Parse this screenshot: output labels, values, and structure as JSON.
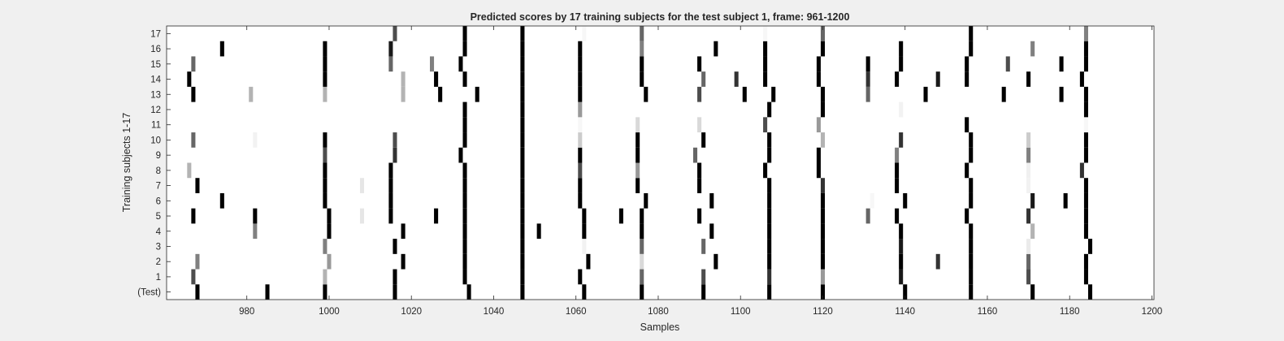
{
  "chart_data": {
    "type": "heatmap",
    "title": "Predicted scores by 17 training subjects for the test subject 1, frame: 961-1200",
    "xlabel": "Samples",
    "ylabel": "Training subjects 1-17",
    "xlim": [
      961,
      1200
    ],
    "xticks": [
      980,
      1000,
      1020,
      1040,
      1060,
      1080,
      1100,
      1120,
      1140,
      1160,
      1180,
      1200
    ],
    "row_labels": [
      "(Test)",
      "1",
      "2",
      "3",
      "4",
      "5",
      "6",
      "7",
      "8",
      "9",
      "10",
      "11",
      "12",
      "13",
      "14",
      "15",
      "16",
      "17"
    ],
    "colormap": "gray (white = 0, black = 1)",
    "grid": false,
    "cells_description": "Each row lists [sample, score] pairs of nonzero predicted scores (1 = black).",
    "rows": [
      {
        "label": "(Test)",
        "cells": [
          [
            968,
            1
          ],
          [
            985,
            1
          ],
          [
            999,
            1
          ],
          [
            1016,
            1
          ],
          [
            1034,
            1
          ],
          [
            1047,
            1
          ],
          [
            1062,
            1
          ],
          [
            1076,
            1
          ],
          [
            1091,
            1
          ],
          [
            1107,
            1
          ],
          [
            1120,
            1
          ],
          [
            1140,
            1
          ],
          [
            1156,
            1
          ],
          [
            1171,
            1
          ],
          [
            1185,
            1
          ]
        ]
      },
      {
        "label": "1",
        "cells": [
          [
            967,
            0.7
          ],
          [
            999,
            0.3
          ],
          [
            1016,
            1
          ],
          [
            1033,
            1
          ],
          [
            1047,
            1
          ],
          [
            1061,
            1
          ],
          [
            1076,
            0.6
          ],
          [
            1091,
            0.7
          ],
          [
            1107,
            0.8
          ],
          [
            1120,
            0.4
          ],
          [
            1139,
            0.9
          ],
          [
            1156,
            1
          ],
          [
            1170,
            0.7
          ],
          [
            1184,
            1
          ]
        ]
      },
      {
        "label": "2",
        "cells": [
          [
            968,
            0.5
          ],
          [
            1000,
            0.4
          ],
          [
            1018,
            1
          ],
          [
            1033,
            1
          ],
          [
            1047,
            1
          ],
          [
            1063,
            1
          ],
          [
            1076,
            0.15
          ],
          [
            1094,
            1
          ],
          [
            1107,
            1
          ],
          [
            1120,
            1
          ],
          [
            1139,
            1
          ],
          [
            1148,
            0.8
          ],
          [
            1156,
            1
          ],
          [
            1170,
            0.6
          ],
          [
            1184,
            1
          ]
        ]
      },
      {
        "label": "3",
        "cells": [
          [
            999,
            0.5
          ],
          [
            1016,
            1
          ],
          [
            1033,
            1
          ],
          [
            1047,
            1
          ],
          [
            1062,
            0.05
          ],
          [
            1076,
            0.6
          ],
          [
            1091,
            0.6
          ],
          [
            1107,
            1
          ],
          [
            1120,
            1
          ],
          [
            1139,
            0.9
          ],
          [
            1156,
            1
          ],
          [
            1170,
            0.08
          ],
          [
            1185,
            1
          ]
        ]
      },
      {
        "label": "4",
        "cells": [
          [
            982,
            0.5
          ],
          [
            1000,
            1
          ],
          [
            1018,
            1
          ],
          [
            1033,
            1
          ],
          [
            1047,
            1
          ],
          [
            1051,
            1
          ],
          [
            1062,
            1
          ],
          [
            1076,
            1
          ],
          [
            1093,
            1
          ],
          [
            1107,
            1
          ],
          [
            1120,
            1
          ],
          [
            1139,
            1
          ],
          [
            1156,
            1
          ],
          [
            1171,
            0.3
          ],
          [
            1184,
            1
          ]
        ]
      },
      {
        "label": "5",
        "cells": [
          [
            967,
            1
          ],
          [
            982,
            1
          ],
          [
            1000,
            1
          ],
          [
            1008,
            0.1
          ],
          [
            1015,
            1
          ],
          [
            1026,
            1
          ],
          [
            1033,
            1
          ],
          [
            1047,
            1
          ],
          [
            1062,
            1
          ],
          [
            1071,
            1
          ],
          [
            1076,
            1
          ],
          [
            1090,
            1
          ],
          [
            1107,
            1
          ],
          [
            1120,
            1
          ],
          [
            1131,
            0.6
          ],
          [
            1138,
            1
          ],
          [
            1155,
            1
          ],
          [
            1170,
            0.8
          ],
          [
            1184,
            1
          ]
        ]
      },
      {
        "label": "6",
        "cells": [
          [
            974,
            1
          ],
          [
            999,
            1
          ],
          [
            1015,
            1
          ],
          [
            1033,
            1
          ],
          [
            1047,
            1
          ],
          [
            1061,
            1
          ],
          [
            1077,
            1
          ],
          [
            1093,
            1
          ],
          [
            1107,
            1
          ],
          [
            1120,
            1
          ],
          [
            1132,
            0.03
          ],
          [
            1140,
            1
          ],
          [
            1156,
            1
          ],
          [
            1171,
            0.9
          ],
          [
            1179,
            1
          ],
          [
            1184,
            1
          ]
        ]
      },
      {
        "label": "7",
        "cells": [
          [
            968,
            1
          ],
          [
            999,
            1
          ],
          [
            1008,
            0.1
          ],
          [
            1015,
            1
          ],
          [
            1033,
            1
          ],
          [
            1047,
            1
          ],
          [
            1061,
            1
          ],
          [
            1075,
            1
          ],
          [
            1090,
            1
          ],
          [
            1107,
            1
          ],
          [
            1120,
            0.8
          ],
          [
            1138,
            1
          ],
          [
            1156,
            1
          ],
          [
            1170,
            0.05
          ],
          [
            1184,
            1
          ]
        ]
      },
      {
        "label": "8",
        "cells": [
          [
            966,
            0.3
          ],
          [
            999,
            1
          ],
          [
            1015,
            1
          ],
          [
            1033,
            1
          ],
          [
            1047,
            1
          ],
          [
            1061,
            0.7
          ],
          [
            1075,
            0.4
          ],
          [
            1090,
            1
          ],
          [
            1106,
            1
          ],
          [
            1119,
            1
          ],
          [
            1138,
            1
          ],
          [
            1155,
            1
          ],
          [
            1170,
            0.06
          ],
          [
            1183,
            0.8
          ]
        ]
      },
      {
        "label": "9",
        "cells": [
          [
            999,
            0.7
          ],
          [
            1016,
            0.8
          ],
          [
            1032,
            1
          ],
          [
            1047,
            1
          ],
          [
            1061,
            1
          ],
          [
            1075,
            1
          ],
          [
            1089,
            0.6
          ],
          [
            1107,
            1
          ],
          [
            1119,
            1
          ],
          [
            1138,
            0.5
          ],
          [
            1156,
            1
          ],
          [
            1170,
            0.5
          ],
          [
            1184,
            1
          ]
        ]
      },
      {
        "label": "10",
        "cells": [
          [
            967,
            0.6
          ],
          [
            982,
            0.05
          ],
          [
            999,
            1
          ],
          [
            1016,
            0.7
          ],
          [
            1033,
            1
          ],
          [
            1047,
            1
          ],
          [
            1061,
            0.2
          ],
          [
            1075,
            1
          ],
          [
            1091,
            1
          ],
          [
            1107,
            1
          ],
          [
            1120,
            0.3
          ],
          [
            1139,
            0.8
          ],
          [
            1156,
            1
          ],
          [
            1170,
            0.2
          ],
          [
            1184,
            1
          ]
        ]
      },
      {
        "label": "11",
        "cells": [
          [
            1033,
            1
          ],
          [
            1047,
            1
          ],
          [
            1061,
            0.03
          ],
          [
            1075,
            0.15
          ],
          [
            1090,
            0.15
          ],
          [
            1106,
            0.7
          ],
          [
            1119,
            0.4
          ],
          [
            1155,
            1
          ],
          [
            1184,
            0.03
          ]
        ]
      },
      {
        "label": "12",
        "cells": [
          [
            1033,
            1
          ],
          [
            1047,
            1
          ],
          [
            1061,
            0.4
          ],
          [
            1107,
            1
          ],
          [
            1120,
            1
          ],
          [
            1139,
            0.05
          ],
          [
            1184,
            1
          ]
        ]
      },
      {
        "label": "13",
        "cells": [
          [
            967,
            1
          ],
          [
            981,
            0.3
          ],
          [
            999,
            0.3
          ],
          [
            1018,
            0.3
          ],
          [
            1027,
            1
          ],
          [
            1036,
            1
          ],
          [
            1047,
            1
          ],
          [
            1061,
            1
          ],
          [
            1077,
            1
          ],
          [
            1090,
            0.7
          ],
          [
            1101,
            1
          ],
          [
            1108,
            1
          ],
          [
            1120,
            1
          ],
          [
            1131,
            0.6
          ],
          [
            1145,
            1
          ],
          [
            1164,
            1
          ],
          [
            1178,
            1
          ],
          [
            1184,
            1
          ]
        ]
      },
      {
        "label": "14",
        "cells": [
          [
            966,
            1
          ],
          [
            999,
            1
          ],
          [
            1018,
            0.3
          ],
          [
            1026,
            1
          ],
          [
            1033,
            1
          ],
          [
            1047,
            1
          ],
          [
            1061,
            1
          ],
          [
            1076,
            1
          ],
          [
            1091,
            0.6
          ],
          [
            1099,
            0.8
          ],
          [
            1106,
            1
          ],
          [
            1119,
            1
          ],
          [
            1131,
            0.8
          ],
          [
            1138,
            1
          ],
          [
            1148,
            0.9
          ],
          [
            1155,
            1
          ],
          [
            1170,
            1
          ],
          [
            1183,
            1
          ]
        ]
      },
      {
        "label": "15",
        "cells": [
          [
            967,
            0.6
          ],
          [
            999,
            1
          ],
          [
            1015,
            0.6
          ],
          [
            1025,
            0.5
          ],
          [
            1032,
            1
          ],
          [
            1047,
            1
          ],
          [
            1061,
            1
          ],
          [
            1076,
            1
          ],
          [
            1090,
            1
          ],
          [
            1106,
            1
          ],
          [
            1119,
            1
          ],
          [
            1131,
            1
          ],
          [
            1139,
            1
          ],
          [
            1155,
            1
          ],
          [
            1165,
            0.7
          ],
          [
            1178,
            1
          ],
          [
            1184,
            1
          ]
        ]
      },
      {
        "label": "16",
        "cells": [
          [
            974,
            1
          ],
          [
            999,
            1
          ],
          [
            1015,
            0.9
          ],
          [
            1033,
            1
          ],
          [
            1047,
            1
          ],
          [
            1061,
            1
          ],
          [
            1076,
            0.5
          ],
          [
            1094,
            1
          ],
          [
            1106,
            1
          ],
          [
            1120,
            1
          ],
          [
            1139,
            1
          ],
          [
            1156,
            1
          ],
          [
            1171,
            0.5
          ],
          [
            1184,
            1
          ]
        ]
      },
      {
        "label": "17",
        "cells": [
          [
            1016,
            0.7
          ],
          [
            1033,
            1
          ],
          [
            1047,
            1
          ],
          [
            1062,
            0.03
          ],
          [
            1076,
            0.6
          ],
          [
            1106,
            0.03
          ],
          [
            1120,
            0.6
          ],
          [
            1156,
            1
          ],
          [
            1184,
            0.5
          ]
        ]
      }
    ]
  }
}
